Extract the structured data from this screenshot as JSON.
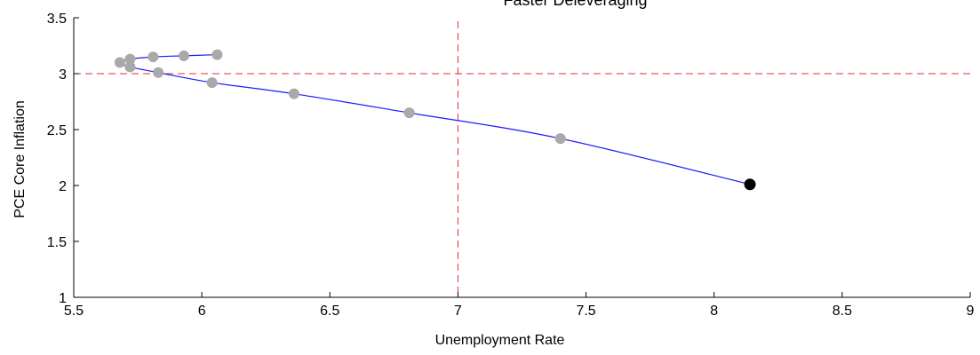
{
  "chart_data": {
    "type": "line",
    "title": "Faster Deleveraging",
    "xlabel": "Unemployment Rate",
    "ylabel": "PCE Core Inflation",
    "xlim": [
      5.5,
      9
    ],
    "ylim": [
      1,
      3.5
    ],
    "x_ticks": [
      5.5,
      6,
      6.5,
      7,
      7.5,
      8,
      8.5,
      9
    ],
    "y_ticks": [
      1,
      1.5,
      2,
      2.5,
      3,
      3.5
    ],
    "x_tick_labels": [
      "5.5",
      "6",
      "6.5",
      "7",
      "7.5",
      "8",
      "8.5",
      "9"
    ],
    "y_tick_labels": [
      "1",
      "1.5",
      "2",
      "2.5",
      "3",
      "3.5"
    ],
    "grid": false,
    "reference_lines": [
      {
        "orientation": "horizontal",
        "value": 3.0,
        "style": "dashed",
        "color": "#e03030"
      },
      {
        "orientation": "vertical",
        "value": 7.0,
        "style": "dashed",
        "color": "#e03030"
      }
    ],
    "series": [
      {
        "line_color": "#1a1aff",
        "marker_color": "#a9a9a9",
        "points": [
          {
            "x": 8.14,
            "y": 2.01
          },
          {
            "x": 7.4,
            "y": 2.42
          },
          {
            "x": 6.81,
            "y": 2.65
          },
          {
            "x": 6.36,
            "y": 2.82
          },
          {
            "x": 6.04,
            "y": 2.92
          },
          {
            "x": 5.83,
            "y": 3.01
          },
          {
            "x": 5.72,
            "y": 3.06
          },
          {
            "x": 5.68,
            "y": 3.1
          },
          {
            "x": 5.72,
            "y": 3.13
          },
          {
            "x": 5.81,
            "y": 3.15
          },
          {
            "x": 5.93,
            "y": 3.16
          },
          {
            "x": 6.06,
            "y": 3.17
          }
        ],
        "start_marker_color": "#000000"
      }
    ]
  }
}
